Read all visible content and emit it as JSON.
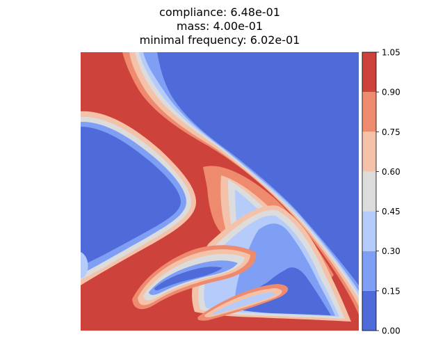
{
  "title": {
    "line1": "compliance: 6.48e-01",
    "line2": "mass: 4.00e-01",
    "line3": "minimal frequency: 6.02e-01"
  },
  "chart_data": {
    "type": "heatmap",
    "title": "compliance: 6.48e-01 / mass: 4.00e-01 / minimal frequency: 6.02e-01",
    "colormap": "coolwarm",
    "colorbar": {
      "levels": [
        0.0,
        0.15,
        0.3,
        0.45,
        0.6,
        0.75,
        0.9,
        1.05
      ],
      "tick_labels": [
        "0.00",
        "0.15",
        "0.30",
        "0.45",
        "0.60",
        "0.75",
        "0.90",
        "1.05"
      ],
      "colors": [
        "#4f6bd9",
        "#7f9ff5",
        "#b5ccfb",
        "#dcdcdc",
        "#f4c2a9",
        "#ee8b6e",
        "#cd423b"
      ]
    },
    "axes_visible": false,
    "field_description": "filled contour of material density on a unit square"
  }
}
